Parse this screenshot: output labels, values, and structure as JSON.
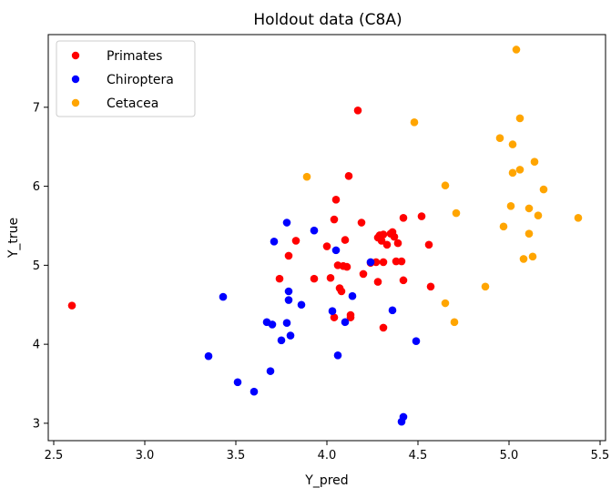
{
  "chart_data": {
    "type": "scatter",
    "title": "Holdout data (C8A)",
    "xlabel": "Y_pred",
    "ylabel": "Y_true",
    "xlim": [
      2.47,
      5.53
    ],
    "ylim": [
      2.78,
      7.92
    ],
    "xticks": [
      2.5,
      3.0,
      3.5,
      4.0,
      4.5,
      5.0,
      5.5
    ],
    "xtick_labels": [
      "2.5",
      "3.0",
      "3.5",
      "4.0",
      "4.5",
      "5.0",
      "5.5"
    ],
    "yticks": [
      3,
      4,
      5,
      6,
      7
    ],
    "ytick_labels": [
      "3",
      "4",
      "5",
      "6",
      "7"
    ],
    "grid": false,
    "legend_position": "top-left",
    "series": [
      {
        "name": "Primates",
        "color": "#ff0000",
        "points": [
          [
            2.6,
            4.49
          ],
          [
            3.74,
            4.83
          ],
          [
            3.79,
            5.12
          ],
          [
            3.83,
            5.31
          ],
          [
            3.93,
            4.83
          ],
          [
            4.0,
            5.24
          ],
          [
            4.02,
            4.84
          ],
          [
            4.04,
            4.34
          ],
          [
            4.04,
            5.58
          ],
          [
            4.05,
            5.83
          ],
          [
            4.06,
            5.0
          ],
          [
            4.07,
            4.71
          ],
          [
            4.08,
            4.67
          ],
          [
            4.09,
            4.99
          ],
          [
            4.1,
            5.32
          ],
          [
            4.11,
            4.98
          ],
          [
            4.12,
            6.13
          ],
          [
            4.13,
            4.37
          ],
          [
            4.13,
            4.34
          ],
          [
            4.17,
            6.96
          ],
          [
            4.19,
            5.54
          ],
          [
            4.2,
            4.89
          ],
          [
            4.24,
            5.03
          ],
          [
            4.27,
            5.04
          ],
          [
            4.28,
            5.35
          ],
          [
            4.28,
            4.79
          ],
          [
            4.29,
            5.38
          ],
          [
            4.3,
            5.31
          ],
          [
            4.31,
            5.39
          ],
          [
            4.31,
            5.04
          ],
          [
            4.31,
            4.21
          ],
          [
            4.33,
            5.26
          ],
          [
            4.35,
            5.4
          ],
          [
            4.36,
            5.42
          ],
          [
            4.37,
            5.36
          ],
          [
            4.38,
            5.05
          ],
          [
            4.39,
            5.28
          ],
          [
            4.41,
            5.05
          ],
          [
            4.42,
            4.81
          ],
          [
            4.42,
            5.6
          ],
          [
            4.52,
            5.62
          ],
          [
            4.56,
            5.26
          ],
          [
            4.57,
            4.73
          ]
        ]
      },
      {
        "name": "Chiroptera",
        "color": "#0000ff",
        "points": [
          [
            3.35,
            3.85
          ],
          [
            3.43,
            4.6
          ],
          [
            3.51,
            3.52
          ],
          [
            3.6,
            3.4
          ],
          [
            3.67,
            4.28
          ],
          [
            3.69,
            3.66
          ],
          [
            3.7,
            4.25
          ],
          [
            3.71,
            5.3
          ],
          [
            3.75,
            4.05
          ],
          [
            3.78,
            4.27
          ],
          [
            3.78,
            5.54
          ],
          [
            3.79,
            4.67
          ],
          [
            3.79,
            4.56
          ],
          [
            3.8,
            4.11
          ],
          [
            3.86,
            4.5
          ],
          [
            3.93,
            5.44
          ],
          [
            4.03,
            4.42
          ],
          [
            4.05,
            5.19
          ],
          [
            4.06,
            3.86
          ],
          [
            4.1,
            4.28
          ],
          [
            4.14,
            4.61
          ],
          [
            4.24,
            5.04
          ],
          [
            4.36,
            4.43
          ],
          [
            4.41,
            3.02
          ],
          [
            4.42,
            3.08
          ],
          [
            4.49,
            4.04
          ]
        ]
      },
      {
        "name": "Cetacea",
        "color": "#ffa500",
        "points": [
          [
            3.89,
            6.12
          ],
          [
            4.48,
            6.81
          ],
          [
            4.65,
            6.01
          ],
          [
            4.65,
            4.52
          ],
          [
            4.7,
            4.28
          ],
          [
            4.71,
            5.66
          ],
          [
            4.87,
            4.73
          ],
          [
            4.95,
            6.61
          ],
          [
            4.97,
            5.49
          ],
          [
            5.01,
            5.75
          ],
          [
            5.02,
            6.53
          ],
          [
            5.02,
            6.17
          ],
          [
            5.04,
            7.73
          ],
          [
            5.06,
            6.21
          ],
          [
            5.06,
            6.86
          ],
          [
            5.08,
            5.08
          ],
          [
            5.11,
            5.72
          ],
          [
            5.11,
            5.4
          ],
          [
            5.13,
            5.11
          ],
          [
            5.14,
            6.31
          ],
          [
            5.16,
            5.63
          ],
          [
            5.19,
            5.96
          ],
          [
            5.38,
            5.6
          ]
        ]
      }
    ]
  }
}
